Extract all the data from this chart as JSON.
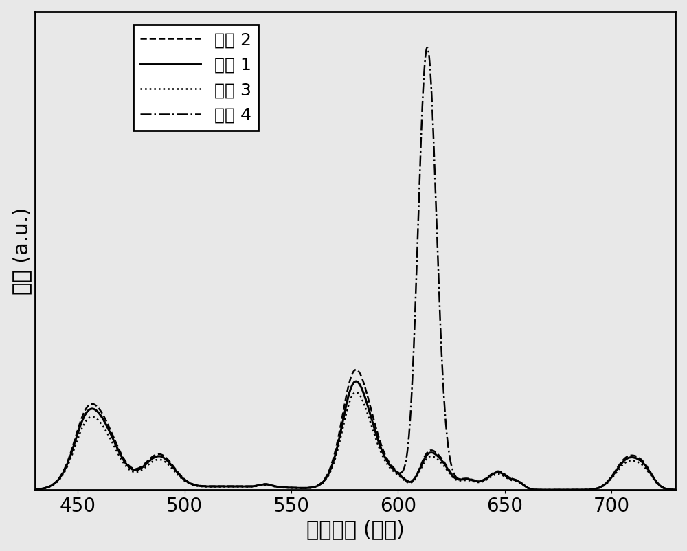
{
  "title": "",
  "xlabel": "发射波长 (纳米)",
  "ylabel": "强度 (a.u.)",
  "xlim": [
    430,
    730
  ],
  "ylim": [
    0,
    1.05
  ],
  "legend_labels": [
    "实例 2",
    "实例 1",
    "实例 3",
    "实例 4"
  ],
  "legend_linestyles": [
    "--",
    "-",
    ":",
    "-."
  ],
  "line_color": "#000000",
  "background_color": "#e8e8e8",
  "plot_bg_color": "#e8e8e8",
  "xticks": [
    450,
    500,
    550,
    600,
    650,
    700
  ],
  "font_size_label": 22,
  "font_size_tick": 20,
  "font_size_legend": 18,
  "linewidth": 1.8
}
